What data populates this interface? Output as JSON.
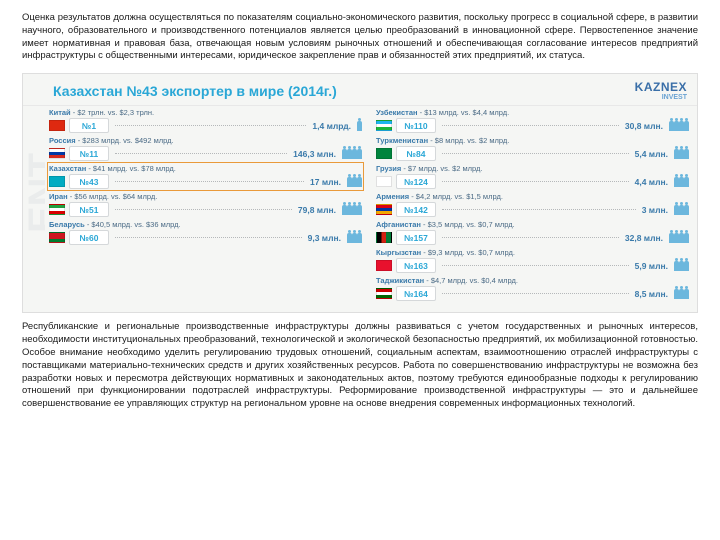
{
  "text": {
    "para1": "Оценка результатов должна осуществляться по показателям социально-экономического развития, поскольку прогресс в социальной сфере, в развитии научного, образовательного и производственного потенциалов является целью преобразований в инновационной сфере. Первостепенное значение имеет нормативная и правовая база, отвечающая новым условиям рыночных отношений и обеспечивающая согласование интересов предприятий инфраструктуры с общественными интересами, юридическое закрепление прав и обязанностей этих предприятий, их статуса.",
    "para2": "Республиканские и региональные производственные инфраструктуры должны развиваться с учетом государственных и рыночных интересов, необходимости институциональных преобразований, технологической и экологической безопасностью предприятий, их мобилизационной готовностью. Особое внимание необходимо уделить регулированию трудовых отношений, социальным аспектам, взаимоотношению отраслей инфраструктуры с поставщиками материально-технических средств и других хозяйственных ресурсов. Работа по совершенствованию инфраструктуры не возможна без разработки новых и пересмотра действующих нормативных и законодательных актов, поэтому требуются единообразные подходы к регулированию отношений при функционировании подотраслей инфраструктуры. Реформирование производственной инфраструктуры — это и дальнейшее совершенствование ее управляющих структур на региональном уровне на основе внедрения современных информационных технологий."
  },
  "infog": {
    "title": "Казахстан №43 экспортер в мире (2014г.)",
    "brand": "KAZNEX",
    "brand_sub": "INVEST",
    "watermark": "ENT",
    "left": [
      {
        "country": "Китай",
        "detail": " - $2 трлн. vs. $2,3 трлн.",
        "rank": "№1",
        "amount": "1,4 млрд.",
        "people": 1,
        "flag": "#de2910"
      },
      {
        "country": "Россия",
        "detail": " - $283 млрд. vs. $492 млрд.",
        "rank": "№11",
        "amount": "146,3 млн.",
        "people": 4,
        "flag": "linear-gradient(#fff 33%,#0039a6 33% 66%,#d52b1e 66%)"
      },
      {
        "country": "Казахстан",
        "detail": " - $41 млрд. vs. $78 млрд.",
        "rank": "№43",
        "amount": "17 млн.",
        "people": 3,
        "flag": "#00abc2",
        "highlight": true
      },
      {
        "country": "Иран",
        "detail": " - $56 млрд. vs. $64 млрд.",
        "rank": "№51",
        "amount": "79,8 млн.",
        "people": 4,
        "flag": "linear-gradient(#239f40 33%,#fff 33% 66%,#da0000 66%)"
      },
      {
        "country": "Беларусь",
        "detail": " - $40,5 млрд. vs. $36 млрд.",
        "rank": "№60",
        "amount": "9,3 млн.",
        "people": 3,
        "flag": "linear-gradient(#ce1720 66%,#007c30 66%)"
      }
    ],
    "right": [
      {
        "country": "Узбекистан",
        "detail": " - $13 млрд. vs. $4,4 млрд.",
        "rank": "№110",
        "amount": "30,8 млн.",
        "people": 4,
        "flag": "linear-gradient(#1eb5ee 33%,#fff 33% 66%,#1eb53a 66%)"
      },
      {
        "country": "Туркменистан",
        "detail": " - $8 млрд. vs. $2 млрд.",
        "rank": "№84",
        "amount": "5,4 млн.",
        "people": 3,
        "flag": "#00843d"
      },
      {
        "country": "Грузия",
        "detail": " - $7 млрд. vs. $2 млрд.",
        "rank": "№124",
        "amount": "4,4 млн.",
        "people": 3,
        "flag": "#ffffff"
      },
      {
        "country": "Армения",
        "detail": " - $4,2 млрд. vs. $1,5 млрд.",
        "rank": "№142",
        "amount": "3 млн.",
        "people": 3,
        "flag": "linear-gradient(#d90012 33%,#0033a0 33% 66%,#f2a800 66%)"
      },
      {
        "country": "Афганистан",
        "detail": " - $3,5 млрд. vs. $0,7 млрд.",
        "rank": "№157",
        "amount": "32,8 млн.",
        "people": 4,
        "flag": "linear-gradient(90deg,#000 33%,#d32011 33% 66%,#007a36 66%)"
      },
      {
        "country": "Кыргызстан",
        "detail": " - $9,3 млрд. vs. $0,7 млрд.",
        "rank": "№163",
        "amount": "5,9 млн.",
        "people": 3,
        "flag": "#e8112d"
      },
      {
        "country": "Таджикистан",
        "detail": " - $4,7 млрд. vs. $0,4 млрд.",
        "rank": "№164",
        "amount": "8,5 млн.",
        "people": 3,
        "flag": "linear-gradient(#cc0000 33%,#fff 33% 66%,#006600 66%)"
      }
    ]
  }
}
